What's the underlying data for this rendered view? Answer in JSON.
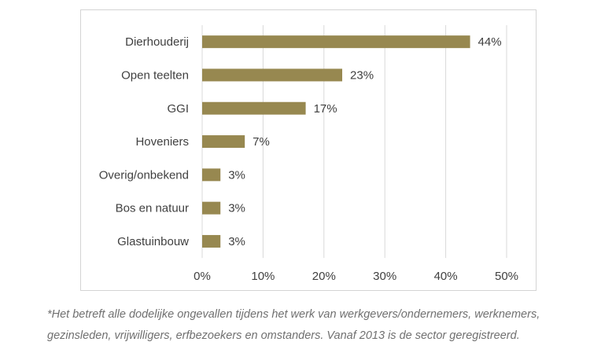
{
  "chart_data": {
    "type": "bar",
    "orientation": "horizontal",
    "categories": [
      "Dierhouderij",
      "Open teelten",
      "GGI",
      "Hoveniers",
      "Overig/onbekend",
      "Bos en natuur",
      "Glastuinbouw"
    ],
    "values": [
      44,
      23,
      17,
      7,
      3,
      3,
      3
    ],
    "value_labels": [
      "44%",
      "23%",
      "17%",
      "7%",
      "3%",
      "3%",
      "3%"
    ],
    "xlim": [
      0,
      50
    ],
    "x_ticks": [
      0,
      10,
      20,
      30,
      40,
      50
    ],
    "x_tick_labels": [
      "0%",
      "10%",
      "20%",
      "30%",
      "40%",
      "50%"
    ],
    "bar_color": "#978850",
    "grid": true,
    "title": "",
    "xlabel": "",
    "ylabel": ""
  },
  "footnote": {
    "line1": "*Het betreft alle dodelijke ongevallen tijdens het werk van werkgevers/ondernemers, werknemers,",
    "line2": "gezinsleden, vrijwilligers, erfbezoekers en omstanders. Vanaf 2013 is de sector geregistreerd."
  }
}
